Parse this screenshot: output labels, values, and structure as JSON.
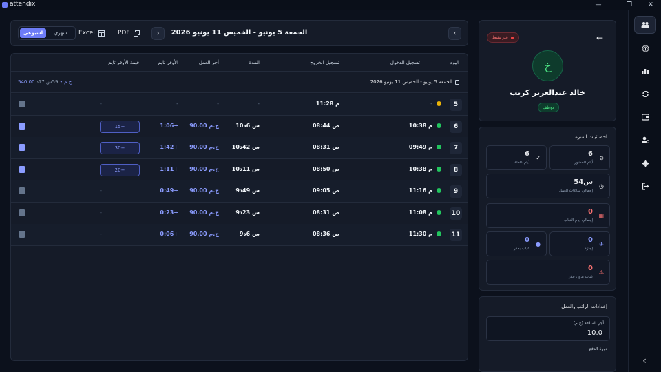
{
  "app": {
    "title": "attendix"
  },
  "window": {
    "minimize": "—",
    "maximize": "❐",
    "close": "✕"
  },
  "header": {
    "range_title": "الجمعة 5 يونيو - الخميس 11 يونيو 2026",
    "pdf_label": "PDF",
    "excel_label": "Excel",
    "view_weekly": "اسبوعي",
    "view_monthly": "شهري",
    "prev": "‹",
    "next": "›"
  },
  "table": {
    "columns": [
      "اليوم",
      "تسجيل الدخول",
      "تسجيل الخروج",
      "المدة",
      "أجر العمل",
      "الأوفر تايم",
      "قيمة الأوفر تايم"
    ],
    "range_label": "الجمعة 5 يونيو - الخميس 11 يونيو 2026",
    "range_summary_amount": "540.00 ج.م",
    "range_summary_sep": "•",
    "range_summary_time": "59س 17د",
    "rows": [
      {
        "day": "5",
        "status": "warn",
        "in": "-",
        "out": "11:28 م",
        "duration": "-",
        "pay": "-",
        "ot": "-",
        "ot_value": "-",
        "doc": "gray"
      },
      {
        "day": "6",
        "status": "ok",
        "in": "10:38 م",
        "out": "08:44 ص",
        "duration": "10س 6د",
        "pay": "90.00 ج.م",
        "ot": "1:06+",
        "ot_value": "15+",
        "doc": "blue"
      },
      {
        "day": "7",
        "status": "ok",
        "in": "09:49 م",
        "out": "08:31 ص",
        "duration": "10س 42د",
        "pay": "90.00 ج.م",
        "ot": "1:42+",
        "ot_value": "30+",
        "doc": "blue"
      },
      {
        "day": "8",
        "status": "ok",
        "in": "10:38 م",
        "out": "08:50 ص",
        "duration": "10س 11د",
        "pay": "90.00 ج.م",
        "ot": "1:11+",
        "ot_value": "20+",
        "doc": "blue"
      },
      {
        "day": "9",
        "status": "ok",
        "in": "11:16 م",
        "out": "09:05 ص",
        "duration": "9س 49د",
        "pay": "90.00 ج.م",
        "ot": "0:49+",
        "ot_value": "-",
        "doc": "gray"
      },
      {
        "day": "10",
        "status": "ok",
        "in": "11:08 م",
        "out": "08:31 ص",
        "duration": "9س 23د",
        "pay": "90.00 ج.م",
        "ot": "0:23+",
        "ot_value": "-",
        "doc": "gray"
      },
      {
        "day": "11",
        "status": "ok",
        "in": "11:30 م",
        "out": "08:36 ص",
        "duration": "9س 6د",
        "pay": "90.00 ج.م",
        "ot": "0:06+",
        "ot_value": "-",
        "doc": "gray"
      }
    ]
  },
  "profile": {
    "status_badge": "غير نشط",
    "avatar_letter": "خ",
    "name": "خالد عبدالعزيز كريب",
    "role_badge": "موظف"
  },
  "stats": {
    "title": "احصائيات الفترة",
    "attendance_days": {
      "value": "6",
      "label": "أيام الحضور"
    },
    "full_days": {
      "value": "6",
      "label": "أيام كاملة"
    },
    "work_hours": {
      "value": "54س",
      "label": "إجمالي ساعات العمل"
    },
    "absence_days": {
      "value": "0",
      "label": "إجمالي أيام الغياب"
    },
    "leave": {
      "value": "0",
      "label": "إجازة"
    },
    "excused_absence": {
      "value": "0",
      "label": "غياب بعذر"
    },
    "unexcused_absence": {
      "value": "0",
      "label": "غياب بدون عذر"
    }
  },
  "settings": {
    "title": "إعدادات الراتب والعمل",
    "hourly_rate_label": "أجر الساعة (ج.م)",
    "hourly_rate_value": "10.0",
    "pay_cycle_label": "دورة الدفع"
  },
  "colors": {
    "accent": "#6d7cf7",
    "success": "#22c55e",
    "danger": "#ef4444",
    "warning": "#eab308"
  }
}
